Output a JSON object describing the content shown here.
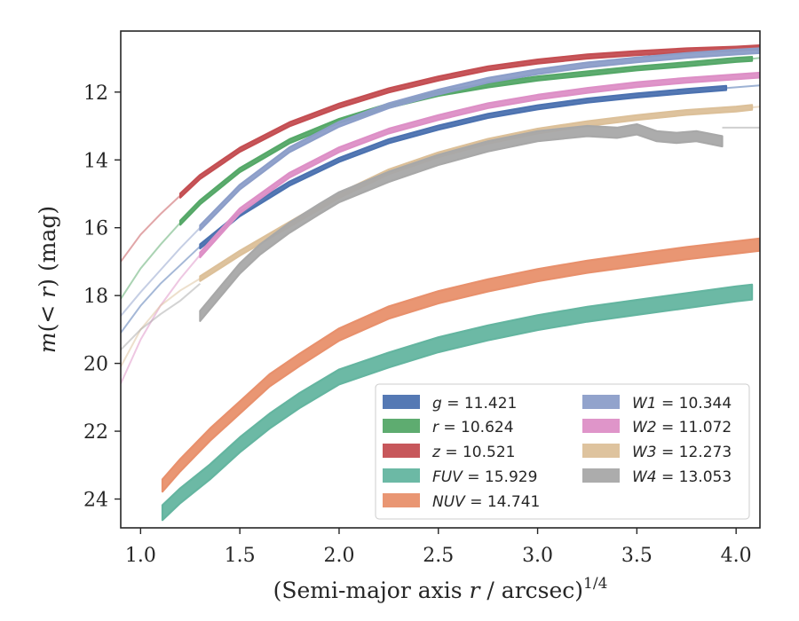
{
  "chart_data": {
    "type": "line",
    "xlabel": "(Semi-major axis r / arcsec)^1/4",
    "ylabel": "m(< r) (mag)",
    "xlim": [
      0.9,
      4.12
    ],
    "ylim": [
      24.85,
      10.2
    ],
    "y_inverted": true,
    "grid": false,
    "legend_position": "lower-right",
    "x_ticks": [
      1.0,
      1.5,
      2.0,
      2.5,
      3.0,
      3.5,
      4.0
    ],
    "y_ticks": [
      12,
      14,
      16,
      18,
      20,
      22,
      24
    ],
    "x_tick_labels": [
      "1.0",
      "1.5",
      "2.0",
      "2.5",
      "3.0",
      "3.5",
      "4.0"
    ],
    "y_tick_labels": [
      "12",
      "14",
      "16",
      "18",
      "20",
      "22",
      "24"
    ],
    "series": [
      {
        "name": "g",
        "label_value": "= 11.421",
        "color": "#4c72b0",
        "band": 0.06,
        "thin": [
          [
            0.9,
            19.1
          ],
          [
            1.0,
            18.3
          ],
          [
            1.1,
            17.65
          ],
          [
            1.2,
            17.1
          ],
          [
            1.3,
            16.55
          ]
        ],
        "x": [
          1.3,
          1.5,
          1.75,
          2.0,
          2.25,
          2.5,
          2.75,
          3.0,
          3.25,
          3.5,
          3.75,
          3.95
        ],
        "y": [
          16.55,
          15.6,
          14.7,
          14.0,
          13.45,
          13.05,
          12.7,
          12.45,
          12.25,
          12.1,
          11.97,
          11.88
        ],
        "tail": [
          [
            3.95,
            11.88
          ],
          [
            4.12,
            11.8
          ]
        ]
      },
      {
        "name": "r",
        "label_value": "= 10.624",
        "color": "#55a868",
        "band": 0.06,
        "thin": [
          [
            0.9,
            18.1
          ],
          [
            1.0,
            17.2
          ],
          [
            1.1,
            16.5
          ],
          [
            1.2,
            15.85
          ]
        ],
        "x": [
          1.2,
          1.3,
          1.5,
          1.75,
          2.0,
          2.25,
          2.5,
          2.75,
          3.0,
          3.25,
          3.5,
          3.75,
          4.0,
          4.08
        ],
        "y": [
          15.85,
          15.25,
          14.3,
          13.45,
          12.85,
          12.4,
          12.05,
          11.8,
          11.6,
          11.45,
          11.3,
          11.18,
          11.05,
          11.02
        ],
        "tail": [
          [
            4.08,
            11.02
          ],
          [
            4.12,
            10.99
          ]
        ]
      },
      {
        "name": "z",
        "label_value": "= 10.521",
        "color": "#c44e52",
        "band": 0.06,
        "thin": [
          [
            0.9,
            17.0
          ],
          [
            1.0,
            16.2
          ],
          [
            1.1,
            15.6
          ],
          [
            1.2,
            15.05
          ]
        ],
        "x": [
          1.2,
          1.3,
          1.5,
          1.75,
          2.0,
          2.25,
          2.5,
          2.75,
          3.0,
          3.25,
          3.5,
          3.75,
          4.0,
          4.12
        ],
        "y": [
          15.05,
          14.5,
          13.7,
          12.95,
          12.4,
          11.95,
          11.6,
          11.3,
          11.1,
          10.95,
          10.85,
          10.77,
          10.72,
          10.68
        ],
        "tail": []
      },
      {
        "name": "FUV",
        "label_value": "= 15.929",
        "color": "#64b5a0",
        "band": 0.22,
        "thin": [],
        "x": [
          1.11,
          1.2,
          1.35,
          1.5,
          1.65,
          1.8,
          2.0,
          2.25,
          2.5,
          2.75,
          3.0,
          3.25,
          3.5,
          3.75,
          4.0,
          4.08
        ],
        "y": [
          24.4,
          23.9,
          23.2,
          22.4,
          21.7,
          21.1,
          20.4,
          19.9,
          19.45,
          19.1,
          18.8,
          18.55,
          18.35,
          18.15,
          17.95,
          17.9
        ],
        "tail": []
      },
      {
        "name": "NUV",
        "label_value": "= 14.741",
        "color": "#e8906c",
        "band": 0.18,
        "thin": [],
        "x": [
          1.11,
          1.2,
          1.35,
          1.5,
          1.65,
          1.8,
          2.0,
          2.25,
          2.5,
          2.75,
          3.0,
          3.25,
          3.5,
          3.75,
          4.0,
          4.12
        ],
        "y": [
          23.6,
          23.0,
          22.1,
          21.3,
          20.5,
          19.9,
          19.15,
          18.5,
          18.05,
          17.7,
          17.4,
          17.15,
          16.95,
          16.75,
          16.58,
          16.5
        ],
        "tail": []
      },
      {
        "name": "W1",
        "label_value": "= 10.344",
        "color": "#8c9ec9",
        "band": 0.07,
        "thin": [
          [
            0.9,
            18.6
          ],
          [
            1.0,
            17.9
          ],
          [
            1.1,
            17.25
          ],
          [
            1.2,
            16.6
          ],
          [
            1.3,
            16.0
          ]
        ],
        "x": [
          1.3,
          1.5,
          1.75,
          2.0,
          2.25,
          2.5,
          2.75,
          3.0,
          3.25,
          3.5,
          3.75,
          4.0,
          4.12
        ],
        "y": [
          16.0,
          14.8,
          13.7,
          12.95,
          12.4,
          12.0,
          11.65,
          11.4,
          11.2,
          11.05,
          10.92,
          10.82,
          10.78
        ],
        "tail": []
      },
      {
        "name": "W2",
        "label_value": "= 11.072",
        "color": "#dd8fc6",
        "band": 0.07,
        "thin": [
          [
            0.9,
            20.6
          ],
          [
            1.0,
            19.3
          ],
          [
            1.1,
            18.3
          ],
          [
            1.2,
            17.5
          ],
          [
            1.3,
            16.8
          ]
        ],
        "x": [
          1.3,
          1.5,
          1.75,
          2.0,
          2.25,
          2.5,
          2.75,
          3.0,
          3.25,
          3.5,
          3.75,
          4.0,
          4.12
        ],
        "y": [
          16.8,
          15.5,
          14.45,
          13.7,
          13.15,
          12.75,
          12.4,
          12.15,
          11.95,
          11.78,
          11.65,
          11.55,
          11.5
        ],
        "tail": []
      },
      {
        "name": "W3",
        "label_value": "= 12.273",
        "color": "#dcc099",
        "band": 0.07,
        "thin": [
          [
            0.9,
            20.1
          ],
          [
            1.0,
            19.0
          ],
          [
            1.1,
            18.3
          ],
          [
            1.2,
            17.85
          ],
          [
            1.3,
            17.5
          ]
        ],
        "x": [
          1.3,
          1.5,
          1.75,
          2.0,
          2.25,
          2.5,
          2.75,
          3.0,
          3.25,
          3.5,
          3.75,
          4.0,
          4.08
        ],
        "y": [
          17.5,
          16.75,
          15.9,
          15.05,
          14.35,
          13.85,
          13.45,
          13.15,
          12.93,
          12.75,
          12.6,
          12.5,
          12.45
        ],
        "tail": [
          [
            4.08,
            12.45
          ],
          [
            4.12,
            12.43
          ]
        ]
      },
      {
        "name": "W4",
        "label_value": "= 13.053",
        "color": "#a8a8a8",
        "band": 0.15,
        "thin": [
          [
            0.9,
            19.6
          ],
          [
            1.0,
            19.0
          ],
          [
            1.1,
            18.55
          ],
          [
            1.2,
            18.15
          ],
          [
            1.3,
            17.65
          ]
        ],
        "x": [
          1.3,
          1.4,
          1.5,
          1.6,
          1.75,
          1.9,
          2.0,
          2.25,
          2.5,
          2.75,
          3.0,
          3.25,
          3.4,
          3.5,
          3.6,
          3.7,
          3.8,
          3.93
        ],
        "y": [
          18.6,
          17.9,
          17.2,
          16.65,
          16.0,
          15.45,
          15.1,
          14.5,
          14.0,
          13.6,
          13.3,
          13.15,
          13.2,
          13.1,
          13.3,
          13.35,
          13.3,
          13.45
        ],
        "tail": [
          [
            3.93,
            13.05
          ],
          [
            4.12,
            13.05
          ]
        ]
      }
    ]
  }
}
